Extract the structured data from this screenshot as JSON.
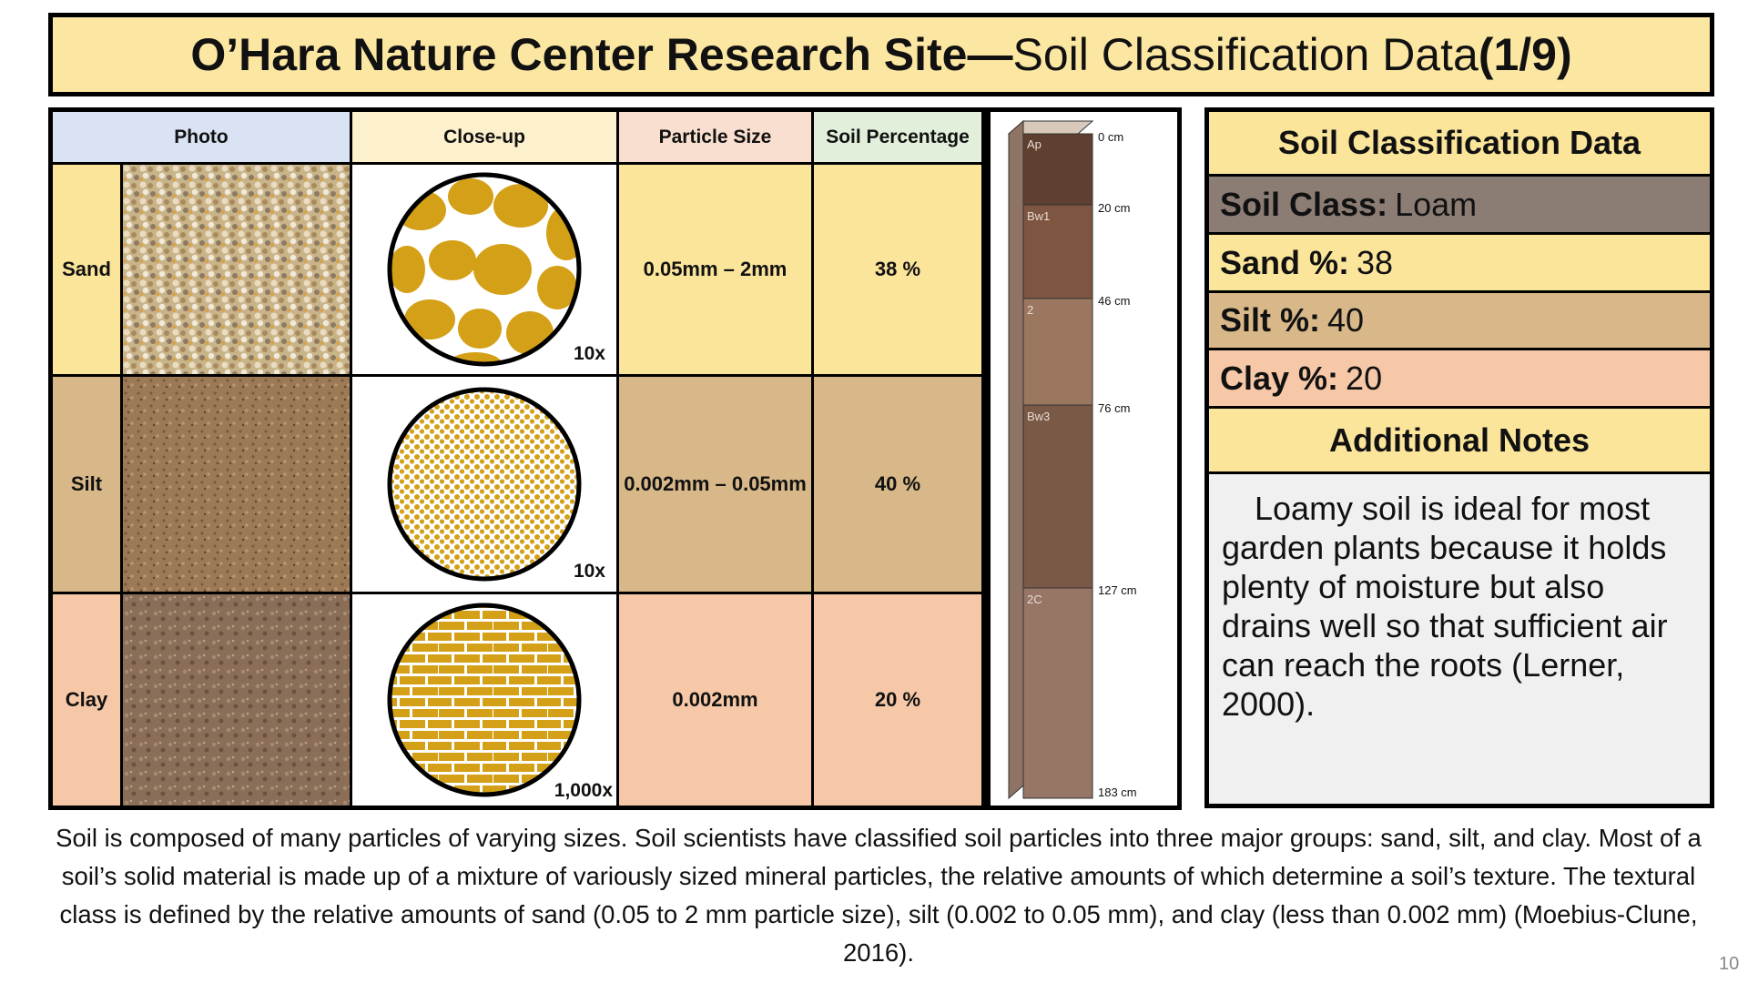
{
  "title": {
    "bold": "O’Hara Nature Center Research Site—",
    "regular": "Soil Classification Data ",
    "suffix": "(1/9)"
  },
  "table": {
    "headers": {
      "photo": "Photo",
      "closeup": "Close-up",
      "particle_size": "Particle Size",
      "soil_percentage": "Soil Percentage"
    },
    "rows": [
      {
        "label": "Sand",
        "magnification": "10x",
        "particle_size": "0.05mm – 2mm",
        "percentage": "38 %"
      },
      {
        "label": "Silt",
        "magnification": "10x",
        "particle_size": "0.002mm – 0.05mm",
        "percentage": "40 %"
      },
      {
        "label": "Clay",
        "magnification": "1,000x",
        "particle_size": "0.002mm",
        "percentage": "20 %"
      }
    ]
  },
  "profile": {
    "depths": [
      "0 cm",
      "20 cm",
      "46 cm",
      "76 cm",
      "127 cm",
      "183 cm"
    ],
    "horizons": [
      "Ap",
      "Bw1",
      "2",
      "Bw3",
      "2C"
    ]
  },
  "summary": {
    "heading": "Soil Classification Data",
    "soil_class_label": "Soil Class:",
    "soil_class_value": "Loam",
    "sand_label": "Sand %:",
    "sand_value": "38",
    "silt_label": "Silt %:",
    "silt_value": "40",
    "clay_label": "Clay %:",
    "clay_value": "20",
    "notes_heading": "Additional Notes",
    "notes_text": "Loamy soil is ideal for most garden plants because it holds plenty of moisture but also drains well so that sufficient air can reach the roots (Lerner, 2000)."
  },
  "caption": "Soil is composed of many particles of varying sizes. Soil scientists have classified soil particles into three major groups: sand, silt, and clay. Most of a soil’s solid material is made up of a mixture of variously sized mineral particles, the relative amounts of which determine a soil’s texture. The textural class is defined by the relative amounts of sand (0.05 to 2 mm particle size), silt (0.002 to 0.05 mm), and clay (less than 0.002 mm) (Moebius-Clune, 2016).",
  "page_number": "10",
  "colors": {
    "sand": "#fbe59b",
    "silt": "#d8b889",
    "clay": "#f6c8a8",
    "photo_header": "#d9e3f3",
    "closeup_header": "#fdf0cc",
    "particle_header": "#f9dfcf",
    "percentage_header": "#e2efda",
    "soil_class_row": "#8b7d74",
    "particle_gold": "#d4a017"
  }
}
